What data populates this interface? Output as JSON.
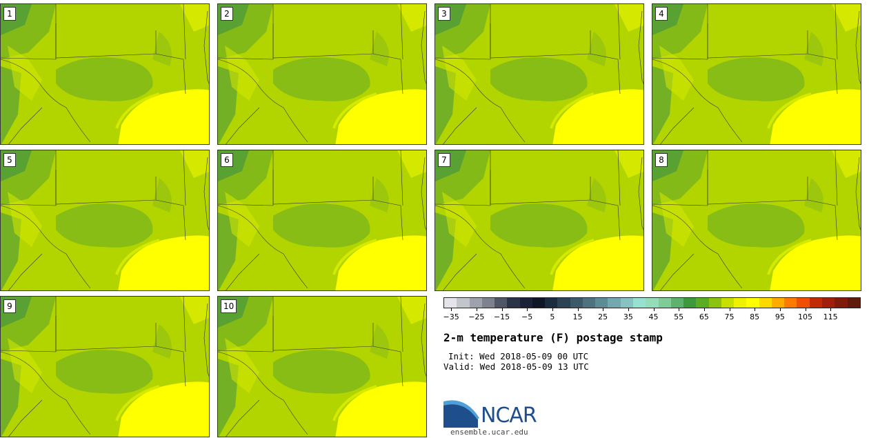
{
  "panels": [
    {
      "label": "1"
    },
    {
      "label": "2"
    },
    {
      "label": "3"
    },
    {
      "label": "4"
    },
    {
      "label": "5"
    },
    {
      "label": "6"
    },
    {
      "label": "7"
    },
    {
      "label": "8"
    },
    {
      "label": "9"
    },
    {
      "label": "10"
    }
  ],
  "colorbar": {
    "colors": [
      "#e4e4ea",
      "#c3c5cc",
      "#9ea2ac",
      "#7d828c",
      "#4f5766",
      "#2b3346",
      "#1a2138",
      "#0e1628",
      "#1b2b40",
      "#2c4356",
      "#3d5a6a",
      "#4e727e",
      "#5d8c94",
      "#75a8ae",
      "#88c2c2",
      "#98e0d0",
      "#94ddb8",
      "#7fcc97",
      "#5db26d",
      "#3d9a3c",
      "#5aac22",
      "#8cc310",
      "#c8e000",
      "#eef200",
      "#ffff00",
      "#ffd800",
      "#ffab00",
      "#ff7a00",
      "#f04e00",
      "#c02a05",
      "#a11e0a",
      "#801a0a",
      "#5e1a0a"
    ],
    "tick_labels": [
      "−35",
      "−25",
      "−15",
      "−5",
      "5",
      "15",
      "25",
      "35",
      "45",
      "55",
      "65",
      "75",
      "85",
      "95",
      "105",
      "115"
    ]
  },
  "title": "2-m temperature (F) postage stamp",
  "init": "Init: Wed 2018-05-09 00 UTC",
  "valid": "Valid: Wed 2018-05-09 13 UTC",
  "logo": {
    "text": "NCAR",
    "colors": {
      "dark": "#1f4e8c",
      "light": "#4f9fd9"
    }
  },
  "site": "ensemble.ucar.edu"
}
